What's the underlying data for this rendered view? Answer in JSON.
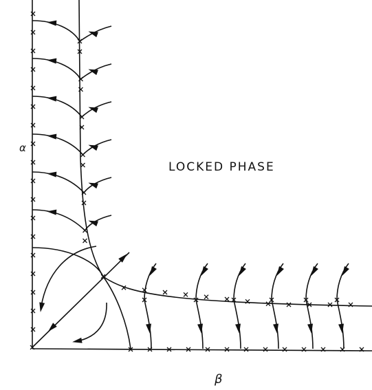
{
  "labels": {
    "alpha": "α",
    "region": "LOCKED PHASE",
    "beta": "β"
  }
}
